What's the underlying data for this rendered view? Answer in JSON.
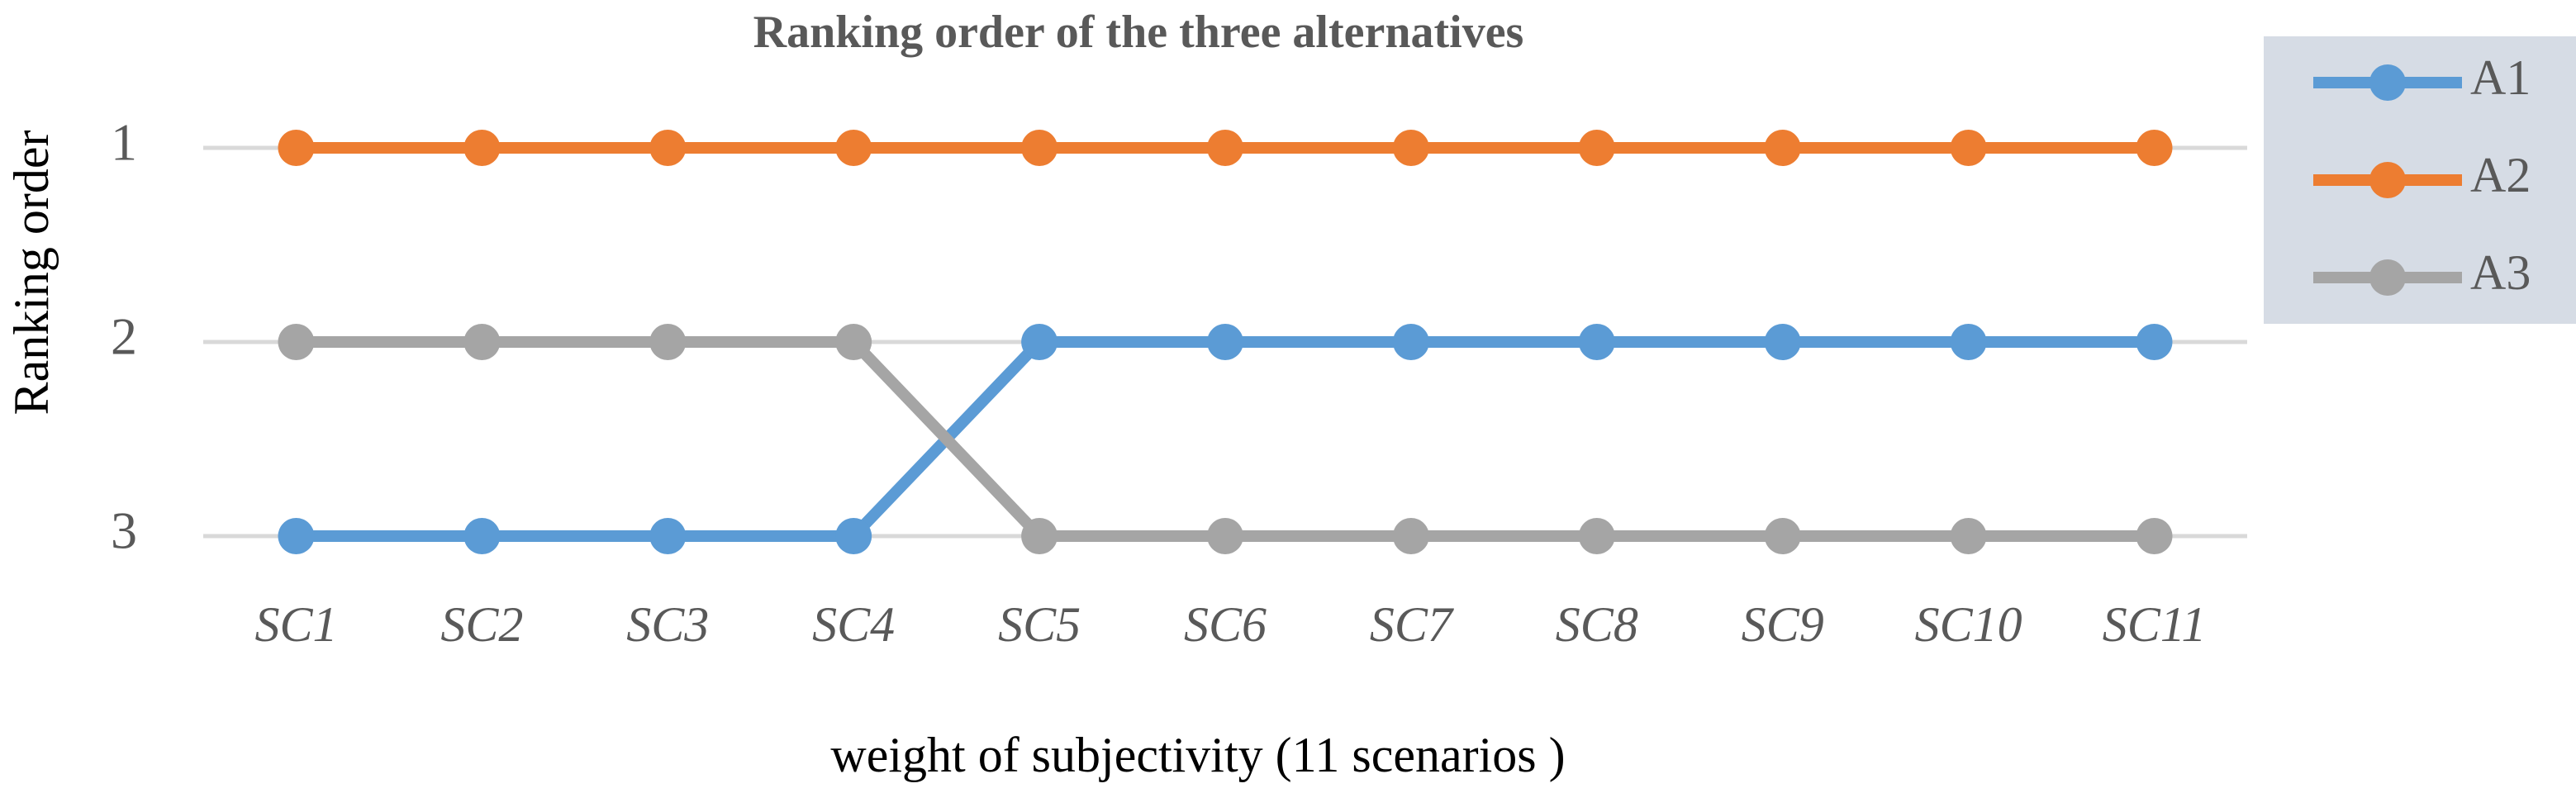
{
  "chart_data": {
    "type": "line",
    "title": "Ranking order of  the three alternatives",
    "x_label": "weight of subjectivity (11 scenarios )",
    "y_label": "Ranking order",
    "categories": [
      "SC1",
      "SC2",
      "SC3",
      "SC4",
      "SC5",
      "SC6",
      "SC7",
      "SC8",
      "SC9",
      "SC10",
      "SC11"
    ],
    "series": [
      {
        "name": "A1",
        "color": "#5b9bd5",
        "values": [
          3,
          3,
          3,
          3,
          2,
          2,
          2,
          2,
          2,
          2,
          2
        ]
      },
      {
        "name": "A2",
        "color": "#ed7d31",
        "values": [
          1,
          1,
          1,
          1,
          1,
          1,
          1,
          1,
          1,
          1,
          1
        ]
      },
      {
        "name": "A3",
        "color": "#a5a5a5",
        "values": [
          2,
          2,
          2,
          2,
          3,
          3,
          3,
          3,
          3,
          3,
          3
        ]
      }
    ],
    "ylim": [
      1,
      3
    ],
    "yticks": [
      1,
      2,
      3
    ],
    "y_inverted": true,
    "grid": true,
    "legend": "right"
  }
}
